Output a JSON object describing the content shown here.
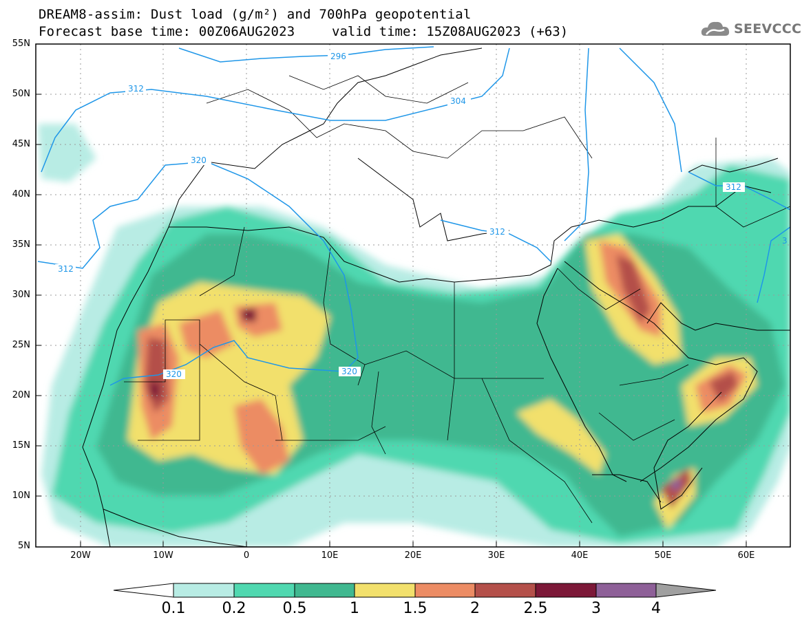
{
  "header": {
    "title_line1": "DREAM8-assim: Dust load (g/m²) and 700hPa geopotential",
    "title_line2": "Forecast base time: 00Z06AUG2023",
    "valid_time": "valid time: 15Z08AUG2023 (+63)",
    "logo_text": "SEEVCCC"
  },
  "axes": {
    "lat_labels": [
      "55N",
      "50N",
      "45N",
      "40N",
      "35N",
      "30N",
      "25N",
      "20N",
      "15N",
      "10N",
      "5N"
    ],
    "lon_labels": [
      "20W",
      "10W",
      "0",
      "10E",
      "20E",
      "30E",
      "40E",
      "50E",
      "60E"
    ]
  },
  "contour_labels": [
    "296",
    "312",
    "304",
    "320",
    "312",
    "320",
    "320",
    "312",
    "312",
    "3"
  ],
  "colorbar": {
    "ticks": [
      "0.1",
      "0.2",
      "0.5",
      "1",
      "1.5",
      "2",
      "2.5",
      "3",
      "4"
    ],
    "colors": [
      "#ffffff",
      "#b8ece4",
      "#50d8b0",
      "#40b890",
      "#f2e06c",
      "#ec8c64",
      "#b4504a",
      "#7c1838",
      "#8e6098",
      "#a0a0a0"
    ]
  },
  "palette": {
    "land_contour": "#000000",
    "geopotential": "#1e96e8",
    "grid": "#9a9a9a"
  }
}
